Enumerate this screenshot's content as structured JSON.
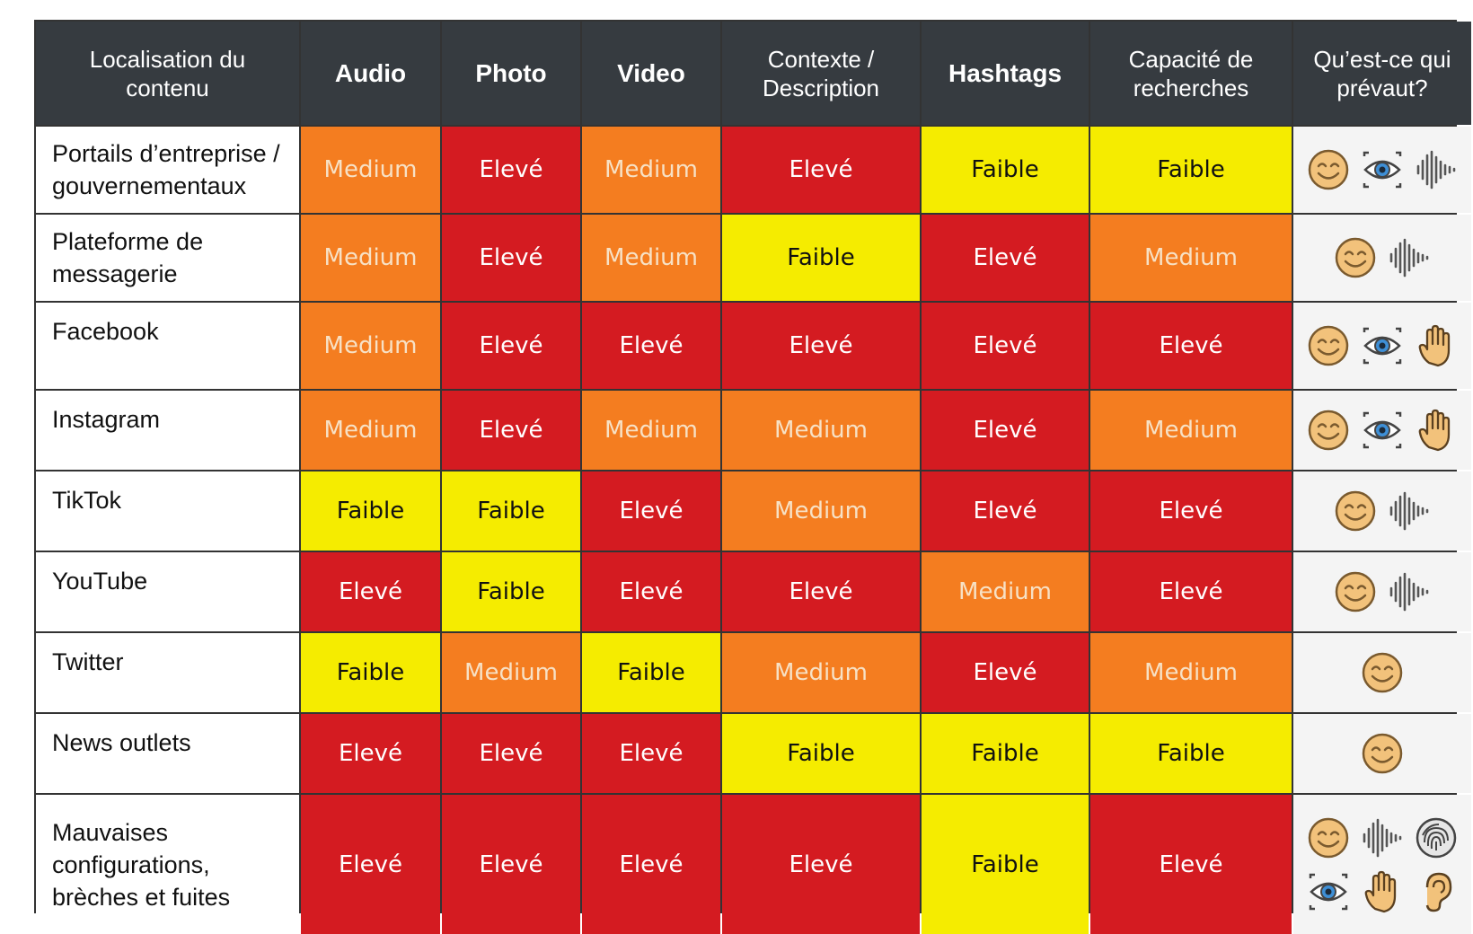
{
  "chart_data": {
    "type": "table",
    "colors": {
      "Elevé": "#D41B21",
      "Medium": "#F47D20",
      "Faible": "#F5EC00",
      "header": "#363B40"
    },
    "columns": [
      "Localisation du contenu",
      "Audio",
      "Photo",
      "Video",
      "Contexte / Description",
      "Hashtags",
      "Capacité de recherches",
      "Qu’est-ce qui prévaut?"
    ],
    "rows": [
      {
        "label": "Portails d’entreprise / gouvernementaux",
        "values": [
          "Medium",
          "Elevé",
          "Medium",
          "Elevé",
          "Faible",
          "Faible"
        ],
        "icons": [
          "smiley-icon",
          "eye-icon",
          "sound-wave-icon"
        ]
      },
      {
        "label": "Plateforme de messagerie",
        "values": [
          "Medium",
          "Elevé",
          "Medium",
          "Faible",
          "Elevé",
          "Medium"
        ],
        "icons": [
          "smiley-icon",
          "sound-wave-icon"
        ]
      },
      {
        "label": "Facebook",
        "values": [
          "Medium",
          "Elevé",
          "Elevé",
          "Elevé",
          "Elevé",
          "Elevé"
        ],
        "icons": [
          "smiley-icon",
          "eye-icon",
          "hand-icon"
        ]
      },
      {
        "label": "Instagram",
        "values": [
          "Medium",
          "Elevé",
          "Medium",
          "Medium",
          "Elevé",
          "Medium"
        ],
        "icons": [
          "smiley-icon",
          "eye-icon",
          "hand-icon"
        ]
      },
      {
        "label": "TikTok",
        "values": [
          "Faible",
          "Faible",
          "Elevé",
          "Medium",
          "Elevé",
          "Elevé"
        ],
        "icons": [
          "smiley-icon",
          "sound-wave-icon"
        ]
      },
      {
        "label": "YouTube",
        "values": [
          "Elevé",
          "Faible",
          "Elevé",
          "Elevé",
          "Medium",
          "Elevé"
        ],
        "icons": [
          "smiley-icon",
          "sound-wave-icon"
        ]
      },
      {
        "label": "Twitter",
        "values": [
          "Faible",
          "Medium",
          "Faible",
          "Medium",
          "Elevé",
          "Medium"
        ],
        "icons": [
          "smiley-icon"
        ]
      },
      {
        "label": "News outlets",
        "values": [
          "Elevé",
          "Elevé",
          "Elevé",
          "Faible",
          "Faible",
          "Faible"
        ],
        "icons": [
          "smiley-icon"
        ]
      },
      {
        "label": "Mauvaises configurations, brèches et fuites",
        "values": [
          "Elevé",
          "Elevé",
          "Elevé",
          "Elevé",
          "Faible",
          "Elevé"
        ],
        "icons": [
          "smiley-icon",
          "sound-wave-icon",
          "fingerprint-icon",
          "eye-icon",
          "hand-icon",
          "ear-icon"
        ]
      }
    ]
  }
}
